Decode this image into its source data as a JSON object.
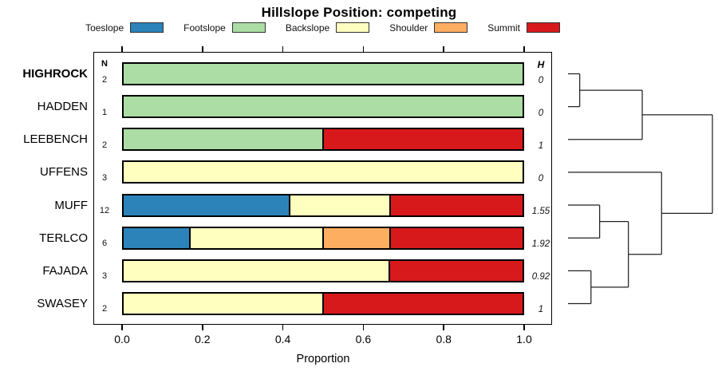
{
  "title": "Hillslope Position: competing",
  "legend": {
    "items": [
      {
        "label": "Toeslope",
        "color": "#2B83BA"
      },
      {
        "label": "Footslope",
        "color": "#ABDDA4"
      },
      {
        "label": "Backslope",
        "color": "#FFFFBF"
      },
      {
        "label": "Shoulder",
        "color": "#FDAE61"
      },
      {
        "label": "Summit",
        "color": "#D7191C"
      }
    ]
  },
  "columns": {
    "n_header": "N",
    "h_header": "H"
  },
  "axis": {
    "label": "Proportion",
    "ticks": [
      "0.0",
      "0.2",
      "0.4",
      "0.6",
      "0.8",
      "1.0"
    ],
    "tick_values": [
      0,
      0.2,
      0.4,
      0.6,
      0.8,
      1.0
    ]
  },
  "chart_data": {
    "type": "bar",
    "variant": "horizontal-stacked",
    "title": "Hillslope Position: competing",
    "xlabel": "Proportion",
    "xlim": [
      0,
      1
    ],
    "grid": false,
    "legend_position": "top",
    "categories": [
      "Toeslope",
      "Footslope",
      "Backslope",
      "Shoulder",
      "Summit"
    ],
    "rows": [
      {
        "label": "HIGHROCK",
        "bold": true,
        "n": 2,
        "h": "0",
        "segments": [
          {
            "name": "Footslope",
            "value": 1.0
          }
        ]
      },
      {
        "label": "HADDEN",
        "bold": false,
        "n": 1,
        "h": "0",
        "segments": [
          {
            "name": "Footslope",
            "value": 1.0
          }
        ]
      },
      {
        "label": "LEEBENCH",
        "bold": false,
        "n": 2,
        "h": "1",
        "segments": [
          {
            "name": "Footslope",
            "value": 0.5
          },
          {
            "name": "Summit",
            "value": 0.5
          }
        ]
      },
      {
        "label": "UFFENS",
        "bold": false,
        "n": 3,
        "h": "0",
        "segments": [
          {
            "name": "Backslope",
            "value": 1.0
          }
        ]
      },
      {
        "label": "MUFF",
        "bold": false,
        "n": 12,
        "h": "1.55",
        "segments": [
          {
            "name": "Toeslope",
            "value": 0.4167
          },
          {
            "name": "Backslope",
            "value": 0.25
          },
          {
            "name": "Summit",
            "value": 0.3333
          }
        ]
      },
      {
        "label": "TERLCO",
        "bold": false,
        "n": 6,
        "h": "1.92",
        "segments": [
          {
            "name": "Toeslope",
            "value": 0.1667
          },
          {
            "name": "Backslope",
            "value": 0.3333
          },
          {
            "name": "Shoulder",
            "value": 0.1667
          },
          {
            "name": "Summit",
            "value": 0.3333
          }
        ]
      },
      {
        "label": "FAJADA",
        "bold": false,
        "n": 3,
        "h": "0.92",
        "segments": [
          {
            "name": "Backslope",
            "value": 0.6667
          },
          {
            "name": "Summit",
            "value": 0.3333
          }
        ]
      },
      {
        "label": "SWASEY",
        "bold": false,
        "n": 2,
        "h": "1",
        "segments": [
          {
            "name": "Backslope",
            "value": 0.5
          },
          {
            "name": "Summit",
            "value": 0.5
          }
        ]
      }
    ],
    "dendrogram": {
      "orientation": "right",
      "tree": {
        "h": 1.0,
        "children": [
          {
            "h": 0.514,
            "children": [
              {
                "h": 0.081,
                "children": [
                  "HIGHROCK",
                  "HADDEN"
                ]
              },
              "LEEBENCH"
            ]
          },
          {
            "h": 0.648,
            "children": [
              "UFFENS",
              {
                "h": 0.418,
                "children": [
                  {
                    "h": 0.219,
                    "children": [
                      "MUFF",
                      "TERLCO"
                    ]
                  },
                  {
                    "h": 0.159,
                    "children": [
                      "FAJADA",
                      "SWASEY"
                    ]
                  }
                ]
              }
            ]
          }
        ]
      }
    }
  }
}
